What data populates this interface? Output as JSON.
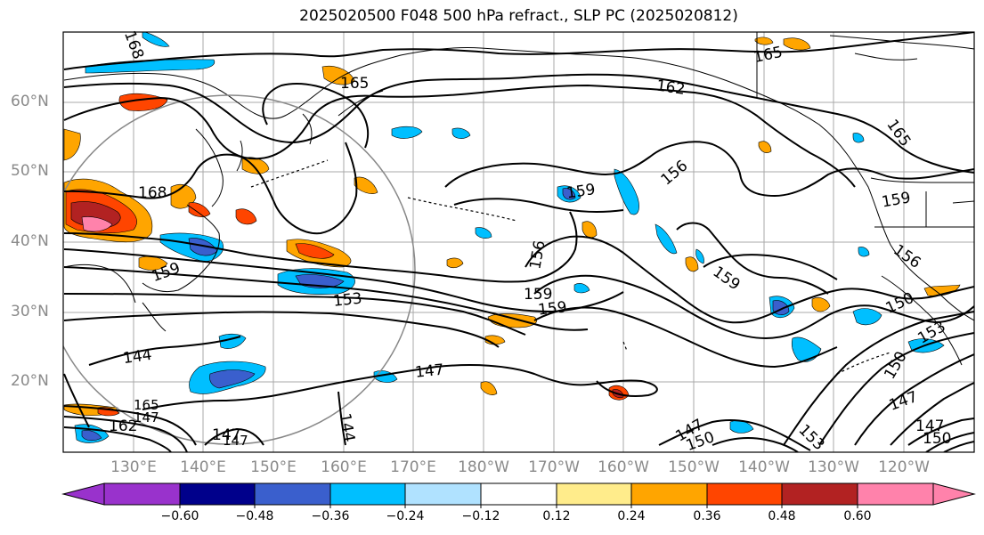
{
  "title": "2025020500 F048 500 hPa refract., SLP PC (2025020812)",
  "lat_labels": [
    "60°N",
    "50°N",
    "40°N",
    "30°N",
    "20°N"
  ],
  "lon_labels": [
    "130°E",
    "140°E",
    "150°E",
    "160°E",
    "170°E",
    "180°W",
    "170°W",
    "160°W",
    "150°W",
    "140°W",
    "130°W",
    "120°W"
  ],
  "contour_labels": [
    "165",
    "162",
    "165",
    "168",
    "168",
    "156",
    "159",
    "156",
    "165",
    "159",
    "153",
    "156",
    "159",
    "159",
    "159",
    "150",
    "153",
    "150",
    "144",
    "147",
    "147",
    "144",
    "147",
    "147",
    "150",
    "147",
    "150",
    "153",
    "162"
  ],
  "colorbar": {
    "ticks": [
      "−0.60",
      "−0.48",
      "−0.36",
      "−0.24",
      "−0.12",
      "0.12",
      "0.24",
      "0.36",
      "0.48",
      "0.60"
    ],
    "colors": [
      "#9932cc",
      "#00008b",
      "#3a5fcd",
      "#00bfff",
      "#b0e2ff",
      "#ffffff",
      "#ffec8b",
      "#ffa500",
      "#ff4500",
      "#b22222",
      "#ff82ab",
      "#ff82ab"
    ]
  }
}
